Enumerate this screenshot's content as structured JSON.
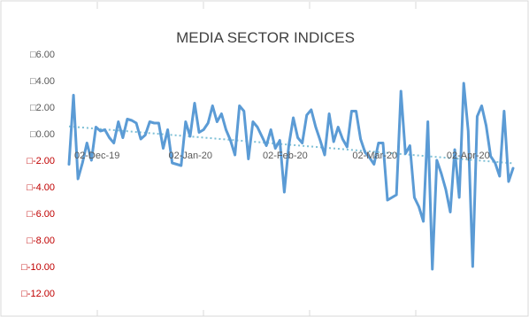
{
  "chart_data": {
    "type": "line",
    "title": "MEDIA SECTOR INDICES",
    "xlabel": "",
    "ylabel": "",
    "ylim": [
      -12,
      6
    ],
    "grid": false,
    "trendline": true,
    "colors": {
      "line": "#5b9bd5",
      "trend": "#7ec0d6",
      "positive_tick": "#595959",
      "negative_tick": "#c00000",
      "frame": "#d9d9d9"
    },
    "y_ticks": [
      {
        "value": 6,
        "label": "□6.00"
      },
      {
        "value": 4,
        "label": "□4.00"
      },
      {
        "value": 2,
        "label": "□2.00"
      },
      {
        "value": 0,
        "label": "□0.00"
      },
      {
        "value": -2,
        "label": "□-2.00"
      },
      {
        "value": -4,
        "label": "□-4.00"
      },
      {
        "value": -6,
        "label": "□-6.00"
      },
      {
        "value": -8,
        "label": "□-8.00"
      },
      {
        "value": -10,
        "label": "□-10.00"
      },
      {
        "value": -12,
        "label": "□-12.00"
      }
    ],
    "x_ticks": [
      {
        "index": 0,
        "label": "02-Dec-19"
      },
      {
        "index": 21,
        "label": "02-Jan-20"
      },
      {
        "index": 42,
        "label": "02-Feb-20"
      },
      {
        "index": 62,
        "label": "02-Mar-20"
      },
      {
        "index": 83,
        "label": "02-Apr-20"
      }
    ],
    "series": [
      {
        "values": [
          -2.3,
          2.9,
          -3.4,
          -2.2,
          -0.7,
          -2.0,
          0.5,
          0.2,
          0.3,
          -0.3,
          -0.7,
          0.9,
          -0.3,
          1.1,
          1.0,
          0.8,
          -0.4,
          -0.1,
          0.9,
          0.8,
          0.8,
          -1.1,
          0.3,
          -2.2,
          -2.3,
          -2.4,
          0.9,
          -0.2,
          2.3,
          0.1,
          0.3,
          0.8,
          2.1,
          0.9,
          1.5,
          0.3,
          -0.5,
          -1.6,
          2.1,
          1.7,
          -1.9,
          0.9,
          0.5,
          -0.2,
          -0.9,
          0.3,
          -1.1,
          -0.5,
          -4.4,
          -0.9,
          1.2,
          -0.3,
          -0.7,
          1.4,
          1.8,
          0.5,
          -0.5,
          -1.6,
          1.5,
          -0.6,
          0.5,
          -0.4,
          -1.0,
          1.7,
          1.7,
          -0.4,
          -1.4,
          -1.8,
          -2.3,
          -0.7,
          -0.7,
          -5.0,
          -4.8,
          -4.6,
          3.2,
          -1.5,
          -0.9,
          -4.8,
          -5.5,
          -6.6,
          0.9,
          -10.2,
          -2.0,
          -3.0,
          -4.2,
          -5.9,
          -1.2,
          -4.8,
          3.8,
          0.2,
          -10.0,
          1.3,
          2.1,
          0.6,
          -1.7,
          -2.2,
          -3.2,
          1.7,
          -3.6,
          -2.6
        ]
      }
    ]
  }
}
